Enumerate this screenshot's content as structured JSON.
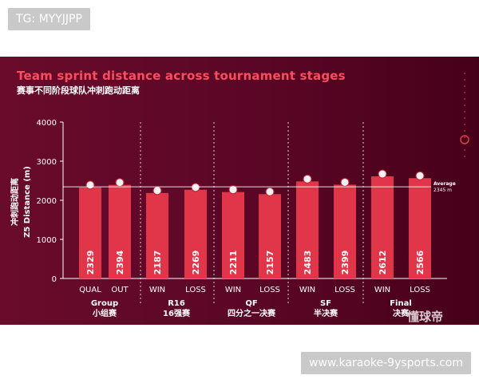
{
  "tags": {
    "top": "TG: MYYJJPP",
    "bottom": "www.karaoke-9ysports.com"
  },
  "colors": {
    "panel_bg": "#5a0625",
    "bar": "#e1364a",
    "title": "#ff4d5e",
    "text": "#ffffff"
  },
  "watermark": "懂球帝",
  "chart_data": {
    "type": "bar",
    "title": "Team sprint distance across tournament stages",
    "subtitle": "赛事不同阶段球队冲刺跑动距离",
    "ylabel_cn": "冲刺跑动距离",
    "ylabel_en": "Z5 Distance (m)",
    "xlabel": "",
    "ylim": [
      0,
      4000
    ],
    "yticks": [
      0,
      1000,
      2000,
      3000,
      4000
    ],
    "grid": false,
    "categories": [
      "QUAL",
      "OUT",
      "WIN",
      "LOSS",
      "WIN",
      "LOSS",
      "WIN",
      "LOSS",
      "WIN",
      "LOSS"
    ],
    "values": [
      2329,
      2394,
      2187,
      2269,
      2211,
      2157,
      2483,
      2399,
      2612,
      2566
    ],
    "value_labels": [
      "2329",
      "2394",
      "2187",
      "2269",
      "2211",
      "2157",
      "2483",
      "2399",
      "2612",
      "2566"
    ],
    "groups": [
      {
        "en": "Group",
        "cn": "小组赛"
      },
      {
        "en": "R16",
        "cn": "16强赛"
      },
      {
        "en": "QF",
        "cn": "四分之一决赛"
      },
      {
        "en": "SF",
        "cn": "半决赛"
      },
      {
        "en": "Final",
        "cn": "决赛"
      }
    ],
    "reference_line": {
      "value": 2345,
      "label": "Average",
      "sublabel": "2345 m"
    }
  }
}
